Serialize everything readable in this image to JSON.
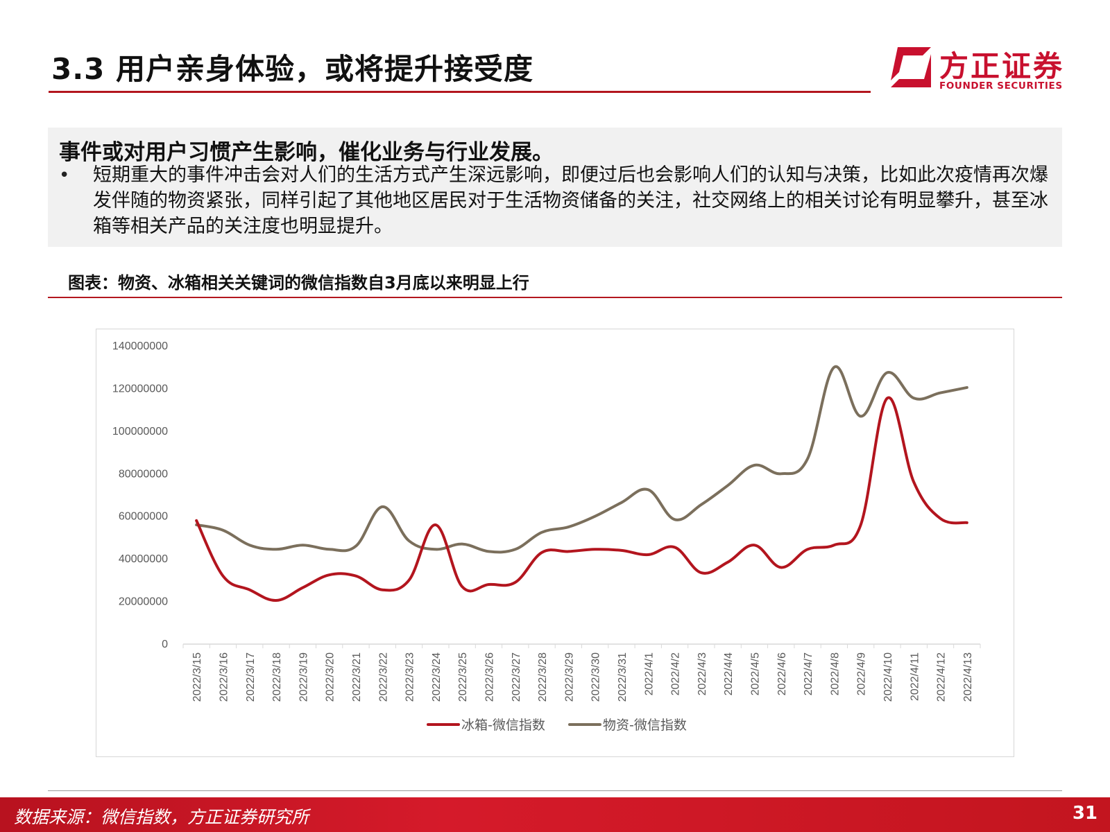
{
  "header": {
    "title": "3.3 用户亲身体验，或将提升接受度"
  },
  "logo": {
    "name_cn": "方正证券",
    "name_en": "FOUNDER SECURITIES",
    "brand_color": "#c8102e"
  },
  "summary": {
    "heading": "事件或对用户习惯产生影响，催化业务与行业发展。",
    "bullet_symbol": "•",
    "bullet_text": "短期重大的事件冲击会对人们的生活方式产生深远影响，即便过后也会影响人们的认知与决策，比如此次疫情再次爆发伴随的物资紧张，同样引起了其他地区居民对于生活物资储备的关注，社交网络上的相关讨论有明显攀升，甚至冰箱等相关产品的关注度也明显提升。"
  },
  "figure": {
    "caption": "图表：物资、冰箱相关关键词的微信指数自3月底以来明显上行"
  },
  "chart_data": {
    "type": "line",
    "title": "",
    "xlabel": "",
    "ylabel": "",
    "ylim": [
      0,
      140000000
    ],
    "yticks": [
      "0",
      "20000000",
      "40000000",
      "60000000",
      "80000000",
      "100000000",
      "120000000",
      "140000000"
    ],
    "y_tick_values": [
      0,
      20000000,
      40000000,
      60000000,
      80000000,
      100000000,
      120000000,
      140000000
    ],
    "grid": false,
    "legend_position": "bottom",
    "smooth": true,
    "x": [
      "2022/3/15",
      "2022/3/16",
      "2022/3/17",
      "2022/3/18",
      "2022/3/19",
      "2022/3/20",
      "2022/3/21",
      "2022/3/22",
      "2022/3/23",
      "2022/3/24",
      "2022/3/25",
      "2022/3/26",
      "2022/3/27",
      "2022/3/28",
      "2022/3/29",
      "2022/3/30",
      "2022/3/31",
      "2022/4/1",
      "2022/4/2",
      "2022/4/3",
      "2022/4/4",
      "2022/4/5",
      "2022/4/6",
      "2022/4/7",
      "2022/4/8",
      "2022/4/9",
      "2022/4/10",
      "2022/4/11",
      "2022/4/12",
      "2022/4/13"
    ],
    "series": [
      {
        "name": "冰箱-微信指数",
        "color": "#b3151e",
        "values": [
          58000000,
          32000000,
          25500000,
          20500000,
          26500000,
          32500000,
          32000000,
          25500000,
          30000000,
          56000000,
          27000000,
          28000000,
          29000000,
          43000000,
          43500000,
          44500000,
          44000000,
          42000000,
          45500000,
          33500000,
          38500000,
          46500000,
          36000000,
          44500000,
          46500000,
          56000000,
          115500000,
          76000000,
          59000000,
          57000000
        ]
      },
      {
        "name": "物资-微信指数",
        "color": "#7b6f5c",
        "values": [
          56000000,
          53500000,
          46500000,
          44500000,
          46500000,
          44500000,
          46000000,
          64500000,
          48500000,
          44500000,
          47000000,
          43500000,
          44500000,
          52500000,
          55000000,
          60000000,
          66500000,
          72500000,
          58500000,
          65500000,
          74500000,
          84000000,
          80000000,
          87000000,
          130000000,
          107000000,
          127500000,
          115500000,
          118000000,
          120500000
        ]
      }
    ]
  },
  "footer": {
    "source": "数据来源：微信指数，方正证券研究所",
    "page_number": "31"
  }
}
